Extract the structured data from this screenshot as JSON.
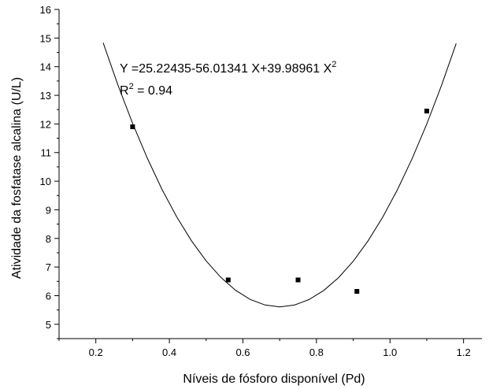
{
  "chart_data": {
    "type": "scatter",
    "title": "",
    "xlabel": "Níveis de fósforo disponível (Pd)",
    "ylabel": "Atividade da fosfatase alcalina (U/L)",
    "xlim": [
      0.1,
      1.25
    ],
    "ylim": [
      4.5,
      16
    ],
    "xticks": [
      "0.2",
      "0.4",
      "0.6",
      "0.8",
      "1.0",
      "1.2"
    ],
    "xtick_values": [
      0.2,
      0.4,
      0.6,
      0.8,
      1.0,
      1.2
    ],
    "yticks": [
      "5",
      "6",
      "7",
      "8",
      "9",
      "10",
      "11",
      "12",
      "13",
      "14",
      "15",
      "16"
    ],
    "ytick_values": [
      5,
      6,
      7,
      8,
      9,
      10,
      11,
      12,
      13,
      14,
      15,
      16
    ],
    "grid": false,
    "points": [
      {
        "x": 0.3,
        "y": 11.9
      },
      {
        "x": 0.56,
        "y": 6.55
      },
      {
        "x": 0.75,
        "y": 6.55
      },
      {
        "x": 0.91,
        "y": 6.15
      },
      {
        "x": 1.1,
        "y": 12.45
      }
    ],
    "fit": {
      "type": "quadratic",
      "coefficients": [
        25.22435,
        -56.01341,
        39.98961
      ],
      "x_range": [
        0.22,
        1.18
      ]
    },
    "annotations": {
      "equation_prefix": "Y =25.22435-56.01341 X+39.98961 X",
      "equation_exponent": "2",
      "r2_prefix": "R",
      "r2_exponent": "2",
      "r2_suffix": " = 0.94"
    }
  }
}
